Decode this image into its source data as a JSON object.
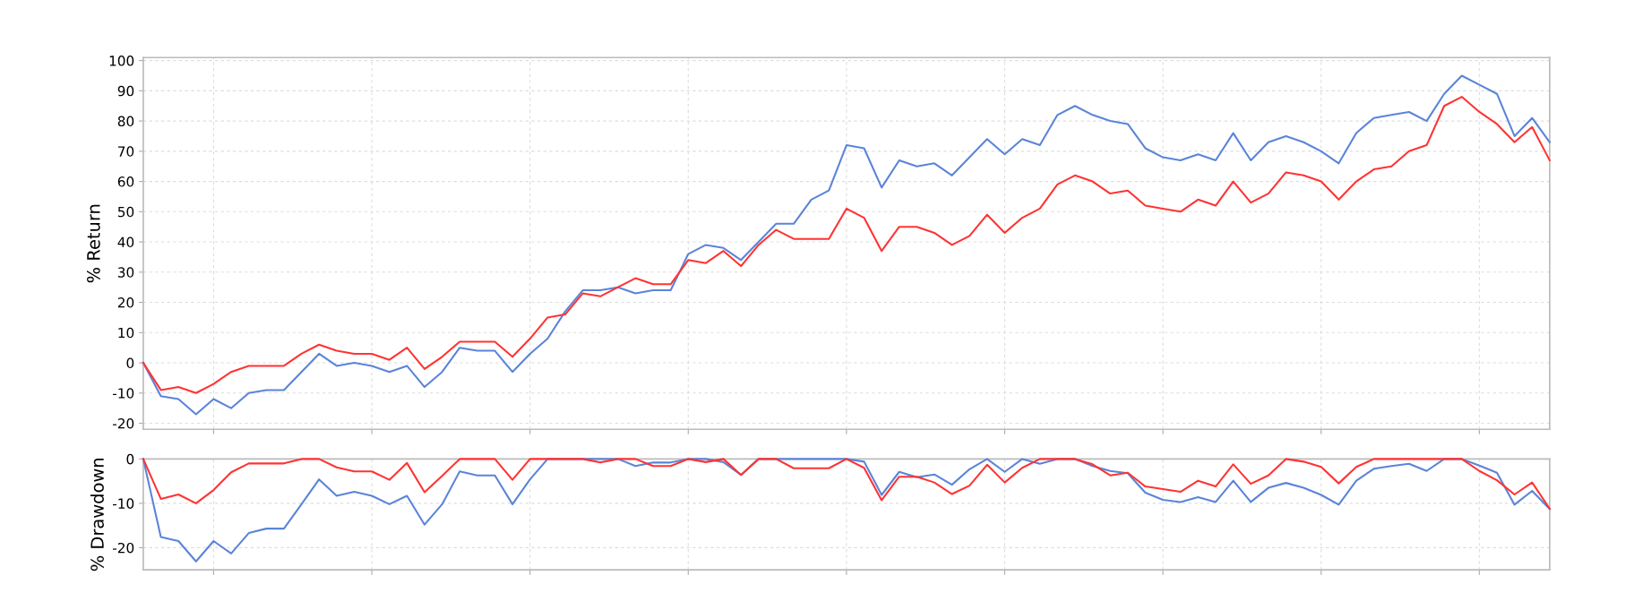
{
  "chart_data": [
    {
      "type": "line",
      "ylabel": "% Return",
      "ylim": [
        -22,
        101
      ],
      "yticks": [
        -20,
        -10,
        0,
        10,
        20,
        30,
        40,
        50,
        60,
        70,
        80,
        90,
        100
      ],
      "grid": true,
      "tick_labels": "y",
      "categories": [
        null,
        null,
        null,
        null,
        null,
        null,
        null,
        null,
        null,
        null,
        null,
        null,
        null,
        null,
        null,
        null,
        null,
        null,
        null,
        null,
        null,
        null,
        null,
        null,
        null,
        null,
        null,
        null,
        null,
        null,
        null,
        null,
        null,
        null,
        null,
        null,
        null,
        null,
        null,
        null,
        null,
        null,
        null,
        null,
        null,
        null,
        null,
        null,
        null,
        null,
        null,
        null,
        null,
        null,
        null,
        null,
        null,
        null,
        null,
        null,
        null,
        null,
        null,
        null,
        null,
        null,
        null,
        null,
        null,
        null,
        null,
        null,
        null,
        null,
        null,
        null,
        null,
        null,
        null,
        null,
        null
      ],
      "series": [
        {
          "color": "#5b84d8",
          "values": [
            0,
            -11,
            -12,
            -17,
            -12,
            -15,
            -10,
            -9,
            -9,
            -3,
            3,
            -1,
            0,
            -1,
            -3,
            -1,
            -8,
            -3,
            5,
            4,
            4,
            -3,
            3,
            8,
            17,
            24,
            24,
            25,
            23,
            24,
            24,
            36,
            39,
            38,
            34,
            40,
            46,
            46,
            54,
            57,
            72,
            71,
            58,
            67,
            65,
            66,
            62,
            68,
            74,
            69,
            74,
            72,
            82,
            85,
            82,
            80,
            79,
            71,
            68,
            67,
            69,
            67,
            76,
            67,
            73,
            75,
            73,
            70,
            66,
            76,
            81,
            82,
            83,
            80,
            89,
            95,
            92,
            89,
            75,
            81,
            73
          ]
        },
        {
          "color": "#ff3333",
          "values": [
            0,
            -9,
            -8,
            -10,
            -7,
            -3,
            -1,
            -1,
            -1,
            3,
            6,
            4,
            3,
            3,
            1,
            5,
            -2,
            2,
            7,
            7,
            7,
            2,
            8,
            15,
            16,
            23,
            22,
            25,
            28,
            26,
            26,
            34,
            33,
            37,
            32,
            39,
            44,
            41,
            41,
            41,
            51,
            48,
            37,
            45,
            45,
            43,
            39,
            42,
            49,
            43,
            48,
            51,
            59,
            62,
            60,
            56,
            57,
            52,
            51,
            50,
            54,
            52,
            60,
            53,
            56,
            63,
            62,
            60,
            54,
            60,
            64,
            65,
            70,
            72,
            85,
            88,
            83,
            79,
            73,
            78,
            67
          ]
        }
      ]
    },
    {
      "type": "line",
      "ylabel": "% Drawdown",
      "ylim": [
        -25,
        0
      ],
      "yticks": [
        -20,
        -10,
        0
      ],
      "grid": true,
      "tick_labels": "y",
      "categories": [
        null,
        null,
        null,
        null,
        null,
        null,
        null,
        null,
        null,
        null,
        null,
        null,
        null,
        null,
        null,
        null,
        null,
        null,
        null,
        null,
        null,
        null,
        null,
        null,
        null,
        null,
        null,
        null,
        null,
        null,
        null,
        null,
        null,
        null,
        null,
        null,
        null,
        null,
        null,
        null,
        null,
        null,
        null,
        null,
        null,
        null,
        null,
        null,
        null,
        null,
        null,
        null,
        null,
        null,
        null,
        null,
        null,
        null,
        null,
        null,
        null,
        null,
        null,
        null,
        null,
        null,
        null,
        null,
        null,
        null,
        null,
        null,
        null,
        null,
        null,
        null,
        null,
        null,
        null,
        null,
        null
      ],
      "series": [
        {
          "color": "#5b84d8",
          "values": [
            0,
            -17.6,
            -18.5,
            -23.1,
            -18.5,
            -21.3,
            -16.7,
            -15.7,
            -15.7,
            -10.2,
            -4.6,
            -8.3,
            -7.4,
            -8.3,
            -10.2,
            -8.3,
            -14.8,
            -10.2,
            -2.8,
            -3.7,
            -3.7,
            -10.2,
            -4.6,
            0,
            0,
            0,
            0,
            0,
            -1.6,
            -0.8,
            -0.8,
            0,
            0,
            -0.7,
            -3.6,
            0,
            0,
            0,
            0,
            0,
            0,
            -0.6,
            -8.1,
            -2.9,
            -4.1,
            -3.5,
            -5.8,
            -2.3,
            0,
            -2.9,
            0,
            -1.1,
            0,
            0,
            -1.6,
            -2.7,
            -3.2,
            -7.6,
            -9.2,
            -9.7,
            -8.6,
            -9.7,
            -4.9,
            -9.7,
            -6.5,
            -5.4,
            -6.5,
            -8.1,
            -10.3,
            -4.9,
            -2.2,
            -1.6,
            -1.1,
            -2.7,
            0,
            0,
            -1.5,
            -3.1,
            -10.3,
            -7.2,
            -11.3
          ]
        },
        {
          "color": "#ff3333",
          "values": [
            0,
            -9,
            -8,
            -10,
            -7,
            -3,
            -1,
            -1,
            -1,
            0,
            0,
            -1.9,
            -2.8,
            -2.8,
            -4.7,
            -0.9,
            -7.5,
            -3.8,
            0,
            0,
            0,
            -4.7,
            0,
            0,
            0,
            0,
            -0.8,
            0,
            0,
            -1.6,
            -1.6,
            0,
            -0.7,
            0,
            -3.6,
            0,
            0,
            -2.1,
            -2.1,
            -2.1,
            0,
            -2,
            -9.3,
            -4,
            -4,
            -5.3,
            -7.9,
            -6,
            -1.3,
            -5.3,
            -2,
            0,
            0,
            0,
            -1.2,
            -3.7,
            -3.1,
            -6.2,
            -6.8,
            -7.4,
            -4.9,
            -6.2,
            -1.2,
            -5.6,
            -3.7,
            0,
            -0.6,
            -1.8,
            -5.5,
            -1.8,
            0,
            0,
            0,
            0,
            0,
            0,
            -2.7,
            -4.8,
            -8,
            -5.3,
            -11.2
          ]
        }
      ]
    }
  ]
}
